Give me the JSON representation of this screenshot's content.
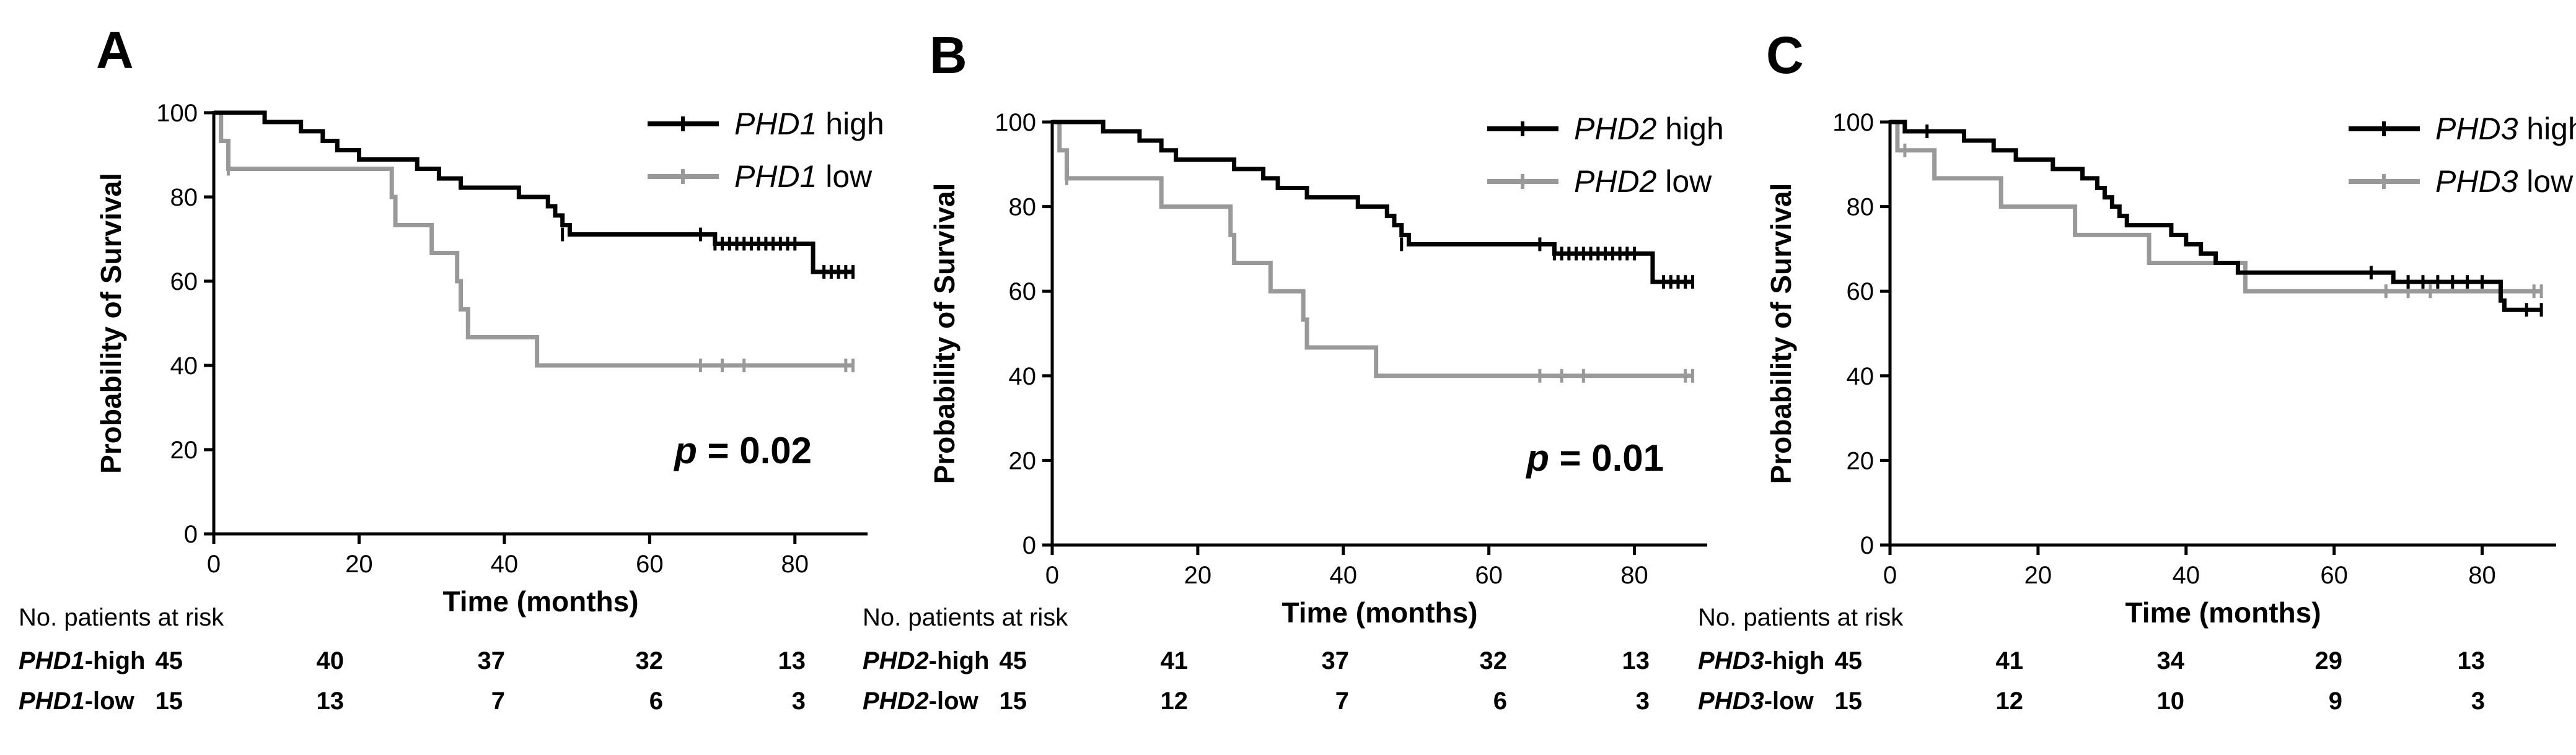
{
  "chart_data": [
    {
      "panel_label": "A",
      "type": "line",
      "subtype": "kaplan-meier",
      "xlabel": "Time (months)",
      "ylabel": "Probability of Survival",
      "xlim": [
        0,
        90
      ],
      "ylim": [
        0,
        100
      ],
      "xticks": [
        0,
        20,
        40,
        60,
        80
      ],
      "yticks": [
        0,
        20,
        40,
        60,
        80,
        100
      ],
      "p_label": "p",
      "p_value": "= 0.02",
      "legend_position": "top-right",
      "series": [
        {
          "gene": "PHD1",
          "group": " high",
          "color": "#000000",
          "steps": [
            [
              0,
              100
            ],
            [
              7,
              97.8
            ],
            [
              12,
              95.6
            ],
            [
              15,
              93.3
            ],
            [
              17,
              91.1
            ],
            [
              20,
              88.9
            ],
            [
              28,
              86.7
            ],
            [
              31,
              84.4
            ],
            [
              34,
              82.2
            ],
            [
              42,
              80
            ],
            [
              46,
              77.8
            ],
            [
              47,
              75.6
            ],
            [
              48,
              73.3
            ],
            [
              49,
              71.1
            ],
            [
              67,
              71.1
            ],
            [
              69,
              68.9
            ],
            [
              82,
              68.9
            ],
            [
              82.5,
              62.2
            ],
            [
              88,
              62.2
            ]
          ],
          "censors": [
            [
              48,
              71.1
            ],
            [
              67,
              71.1
            ],
            [
              69,
              68.9
            ],
            [
              70,
              68.9
            ],
            [
              71,
              68.9
            ],
            [
              72,
              68.9
            ],
            [
              73,
              68.9
            ],
            [
              74,
              68.9
            ],
            [
              75,
              68.9
            ],
            [
              76,
              68.9
            ],
            [
              77,
              68.9
            ],
            [
              78,
              68.9
            ],
            [
              79,
              68.9
            ],
            [
              80,
              68.9
            ],
            [
              84,
              62.2
            ],
            [
              85,
              62.2
            ],
            [
              86,
              62.2
            ],
            [
              87,
              62.2
            ],
            [
              88,
              62.2
            ]
          ]
        },
        {
          "gene": "PHD1",
          "group": " low",
          "color": "#999999",
          "steps": [
            [
              0,
              100
            ],
            [
              1,
              93.3
            ],
            [
              2,
              86.7
            ],
            [
              24,
              86.7
            ],
            [
              24.5,
              80
            ],
            [
              25,
              73.3
            ],
            [
              29,
              73.3
            ],
            [
              30,
              66.7
            ],
            [
              33,
              66.7
            ],
            [
              33.5,
              60
            ],
            [
              34,
              53.3
            ],
            [
              35,
              46.7
            ],
            [
              44,
              46.7
            ],
            [
              44.5,
              40
            ],
            [
              88,
              40
            ]
          ],
          "censors": [
            [
              2,
              86.7
            ],
            [
              67,
              40
            ],
            [
              70,
              40
            ],
            [
              73,
              40
            ],
            [
              87,
              40
            ],
            [
              88,
              40
            ]
          ]
        }
      ],
      "risk_table": {
        "header": "No. patients at risk",
        "times": [
          0,
          20,
          40,
          60,
          80
        ],
        "rows": [
          {
            "gene": "PHD1",
            "suffix": "-high",
            "values": [
              "45",
              "40",
              "37",
              "32",
              "13"
            ]
          },
          {
            "gene": "PHD1",
            "suffix": "-low",
            "values": [
              "15",
              "13",
              "7",
              "6",
              "3"
            ]
          }
        ]
      }
    },
    {
      "panel_label": "B",
      "type": "line",
      "subtype": "kaplan-meier",
      "xlabel": "Time (months)",
      "ylabel": "Probability of Survival",
      "xlim": [
        0,
        90
      ],
      "ylim": [
        0,
        100
      ],
      "xticks": [
        0,
        20,
        40,
        60,
        80
      ],
      "yticks": [
        0,
        20,
        40,
        60,
        80,
        100
      ],
      "p_label": "p",
      "p_value": "= 0.01",
      "legend_position": "top-right",
      "series": [
        {
          "gene": "PHD2",
          "group": " high",
          "color": "#000000",
          "steps": [
            [
              0,
              100
            ],
            [
              7,
              97.8
            ],
            [
              12,
              95.6
            ],
            [
              15,
              93.3
            ],
            [
              17,
              91.1
            ],
            [
              25,
              88.9
            ],
            [
              29,
              86.7
            ],
            [
              31,
              84.4
            ],
            [
              35,
              82.2
            ],
            [
              42,
              80
            ],
            [
              46,
              77.8
            ],
            [
              47,
              75.6
            ],
            [
              48,
              73.3
            ],
            [
              49,
              71.1
            ],
            [
              67,
              71.1
            ],
            [
              69,
              68.9
            ],
            [
              82,
              68.9
            ],
            [
              82.5,
              62.2
            ],
            [
              88,
              62.2
            ]
          ],
          "censors": [
            [
              48,
              71.1
            ],
            [
              67,
              71.1
            ],
            [
              69,
              68.9
            ],
            [
              70,
              68.9
            ],
            [
              71,
              68.9
            ],
            [
              72,
              68.9
            ],
            [
              73,
              68.9
            ],
            [
              74,
              68.9
            ],
            [
              75,
              68.9
            ],
            [
              76,
              68.9
            ],
            [
              77,
              68.9
            ],
            [
              78,
              68.9
            ],
            [
              79,
              68.9
            ],
            [
              80,
              68.9
            ],
            [
              84,
              62.2
            ],
            [
              85,
              62.2
            ],
            [
              86,
              62.2
            ],
            [
              87,
              62.2
            ],
            [
              88,
              62.2
            ]
          ]
        },
        {
          "gene": "PHD2",
          "group": " low",
          "color": "#999999",
          "steps": [
            [
              0,
              100
            ],
            [
              1,
              93.3
            ],
            [
              2,
              86.7
            ],
            [
              14,
              86.7
            ],
            [
              15,
              80
            ],
            [
              24,
              80
            ],
            [
              24.5,
              73.3
            ],
            [
              25,
              66.7
            ],
            [
              29,
              66.7
            ],
            [
              30,
              60
            ],
            [
              34,
              60
            ],
            [
              34.5,
              53.3
            ],
            [
              35,
              46.7
            ],
            [
              44,
              46.7
            ],
            [
              44.5,
              40
            ],
            [
              88,
              40
            ]
          ],
          "censors": [
            [
              2,
              86.7
            ],
            [
              67,
              40
            ],
            [
              70,
              40
            ],
            [
              73,
              40
            ],
            [
              87,
              40
            ],
            [
              88,
              40
            ]
          ]
        }
      ],
      "risk_table": {
        "header": "No. patients at risk",
        "times": [
          0,
          20,
          40,
          60,
          80
        ],
        "rows": [
          {
            "gene": "PHD2",
            "suffix": "-high",
            "values": [
              "45",
              "41",
              "37",
              "32",
              "13"
            ]
          },
          {
            "gene": "PHD2",
            "suffix": "-low",
            "values": [
              "15",
              "12",
              "7",
              "6",
              "3"
            ]
          }
        ]
      }
    },
    {
      "panel_label": "C",
      "type": "line",
      "subtype": "kaplan-meier",
      "xlabel": "Time (months)",
      "ylabel": "Probability of Survival",
      "xlim": [
        0,
        90
      ],
      "ylim": [
        0,
        100
      ],
      "xticks": [
        0,
        20,
        40,
        60,
        80
      ],
      "yticks": [
        0,
        20,
        40,
        60,
        80,
        100
      ],
      "p_label": "",
      "p_value": "",
      "legend_position": "top-right",
      "series": [
        {
          "gene": "PHD3",
          "group": " high",
          "color": "#000000",
          "steps": [
            [
              0,
              100
            ],
            [
              2,
              97.8
            ],
            [
              10,
              95.6
            ],
            [
              14,
              93.3
            ],
            [
              17,
              91.1
            ],
            [
              22,
              88.9
            ],
            [
              26,
              86.7
            ],
            [
              28,
              84.4
            ],
            [
              29,
              82.2
            ],
            [
              30,
              80
            ],
            [
              31,
              77.8
            ],
            [
              32,
              75.6
            ],
            [
              38,
              73.3
            ],
            [
              40,
              71.1
            ],
            [
              42,
              68.9
            ],
            [
              44,
              66.7
            ],
            [
              47,
              64.4
            ],
            [
              48,
              64.4
            ],
            [
              67,
              64.4
            ],
            [
              68,
              62.2
            ],
            [
              82,
              62.2
            ],
            [
              82.5,
              57.8
            ],
            [
              83,
              55.6
            ],
            [
              88,
              55.6
            ]
          ],
          "censors": [
            [
              5,
              97.8
            ],
            [
              65,
              64.4
            ],
            [
              70,
              62.2
            ],
            [
              72,
              62.2
            ],
            [
              74,
              62.2
            ],
            [
              76,
              62.2
            ],
            [
              78,
              62.2
            ],
            [
              80,
              62.2
            ],
            [
              86,
              55.6
            ],
            [
              88,
              55.6
            ]
          ]
        },
        {
          "gene": "PHD3",
          "group": " low",
          "color": "#999999",
          "steps": [
            [
              0,
              100
            ],
            [
              1,
              93.3
            ],
            [
              5,
              93.3
            ],
            [
              6,
              86.7
            ],
            [
              14,
              86.7
            ],
            [
              15,
              80
            ],
            [
              24,
              80
            ],
            [
              25,
              73.3
            ],
            [
              34,
              73.3
            ],
            [
              35,
              66.7
            ],
            [
              47,
              66.7
            ],
            [
              48,
              60
            ],
            [
              88,
              60
            ]
          ],
          "censors": [
            [
              2,
              93.3
            ],
            [
              67,
              60
            ],
            [
              70,
              60
            ],
            [
              73,
              60
            ],
            [
              87,
              60
            ],
            [
              88,
              60
            ]
          ]
        }
      ],
      "risk_table": {
        "header": "No. patients at risk",
        "times": [
          0,
          20,
          40,
          60,
          80
        ],
        "rows": [
          {
            "gene": "PHD3",
            "suffix": "-high",
            "values": [
              "45",
              "41",
              "34",
              "29",
              "13"
            ]
          },
          {
            "gene": "PHD3",
            "suffix": "-low",
            "values": [
              "15",
              "12",
              "10",
              "9",
              "3"
            ]
          }
        ]
      }
    }
  ]
}
